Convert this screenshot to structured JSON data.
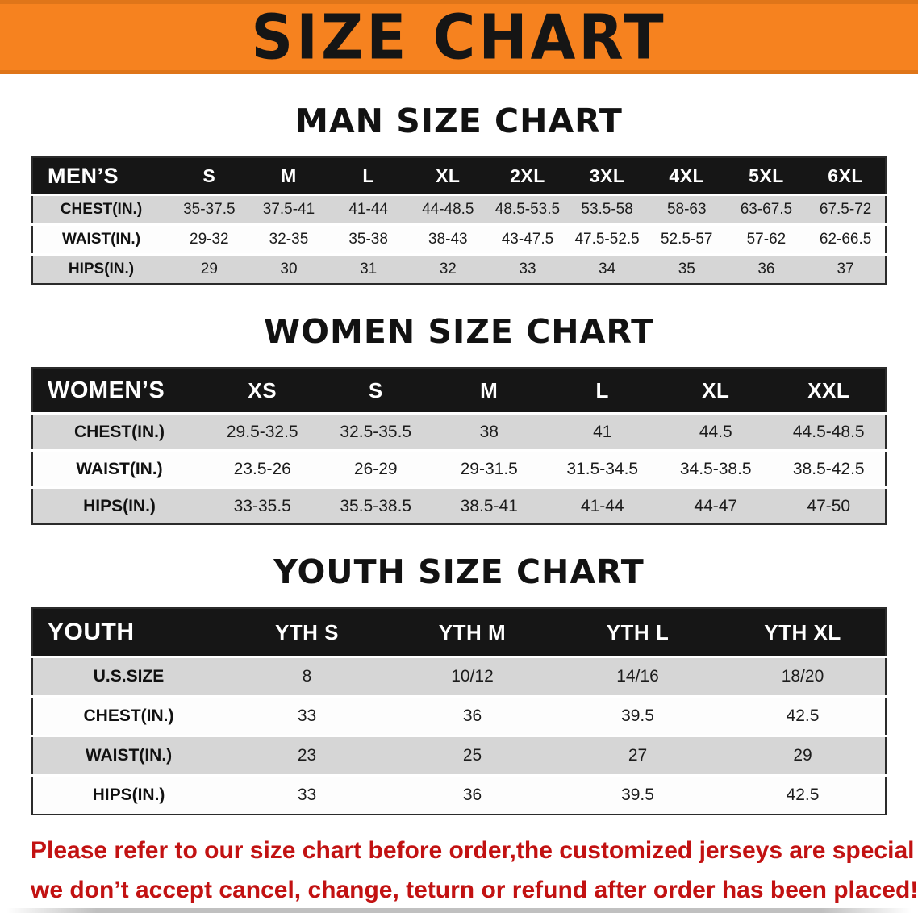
{
  "banner": {
    "title": "SIZE CHART"
  },
  "colors": {
    "banner_bg": "#f6821f",
    "header_bg": "#161616",
    "stripe_gray": "#d6d6d6",
    "footer_red": "#c21212"
  },
  "sections": {
    "men": {
      "heading": "MAN SIZE CHART",
      "table": {
        "header": [
          "MEN’S",
          "S",
          "M",
          "L",
          "XL",
          "2XL",
          "3XL",
          "4XL",
          "5XL",
          "6XL"
        ],
        "rows": [
          [
            "CHEST(IN.)",
            "35-37.5",
            "37.5-41",
            "41-44",
            "44-48.5",
            "48.5-53.5",
            "53.5-58",
            "58-63",
            "63-67.5",
            "67.5-72"
          ],
          [
            "WAIST(IN.)",
            "29-32",
            "32-35",
            "35-38",
            "38-43",
            "43-47.5",
            "47.5-52.5",
            "52.5-57",
            "57-62",
            "62-66.5"
          ],
          [
            "HIPS(IN.)",
            "29",
            "30",
            "31",
            "32",
            "33",
            "34",
            "35",
            "36",
            "37"
          ]
        ]
      }
    },
    "women": {
      "heading": "WOMEN SIZE CHART",
      "table": {
        "header": [
          "WOMEN’S",
          "XS",
          "S",
          "M",
          "L",
          "XL",
          "XXL"
        ],
        "rows": [
          [
            "CHEST(IN.)",
            "29.5-32.5",
            "32.5-35.5",
            "38",
            "41",
            "44.5",
            "44.5-48.5"
          ],
          [
            "WAIST(IN.)",
            "23.5-26",
            "26-29",
            "29-31.5",
            "31.5-34.5",
            "34.5-38.5",
            "38.5-42.5"
          ],
          [
            "HIPS(IN.)",
            "33-35.5",
            "35.5-38.5",
            "38.5-41",
            "41-44",
            "44-47",
            "47-50"
          ]
        ]
      }
    },
    "youth": {
      "heading": "YOUTH SIZE CHART",
      "table": {
        "header": [
          "YOUTH",
          "YTH S",
          "YTH M",
          "YTH L",
          "YTH XL"
        ],
        "rows": [
          [
            "U.S.SIZE",
            "8",
            "10/12",
            "14/16",
            "18/20"
          ],
          [
            "CHEST(IN.)",
            "33",
            "36",
            "39.5",
            "42.5"
          ],
          [
            "WAIST(IN.)",
            "23",
            "25",
            "27",
            "29"
          ],
          [
            "HIPS(IN.)",
            "33",
            "36",
            "39.5",
            "42.5"
          ]
        ]
      }
    }
  },
  "footer": {
    "line1": "Please refer to our size chart before order,the customized jerseys are special products,",
    "line2": "we don’t accept cancel, change, teturn or refund after order has been placed!"
  }
}
